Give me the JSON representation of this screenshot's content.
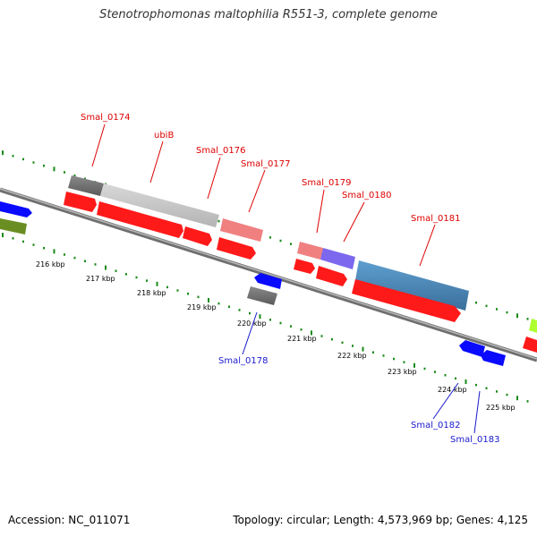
{
  "title": "Stenotrophomonas maltophilia R551-3, complete genome",
  "footer": {
    "accession": "Accession: NC_011071",
    "summary": "Topology: circular; Length: 4,573,969 bp; Genes: 4,125"
  },
  "colors": {
    "backbone": "#8a8a8a",
    "dots": "#1a8a1a",
    "cds": "#ff1a1a",
    "gene_label_top": "#dd0000",
    "gene_label_bottom": "#1a1acc",
    "blue_gene": "#0a0aff",
    "olive_gene": "#6b8e23",
    "grey_gene": "#777777",
    "lightgrey_gene": "#c8c8c8",
    "pink_gene": "#f08080",
    "purple_gene": "#7b68ee",
    "steel_gene": "#4682b4",
    "lime_gene": "#adff2f"
  },
  "scale_ticks": [
    {
      "label": "216 kbp"
    },
    {
      "label": "217 kbp"
    },
    {
      "label": "218 kbp"
    },
    {
      "label": "219 kbp"
    },
    {
      "label": "220 kbp"
    },
    {
      "label": "221 kbp"
    },
    {
      "label": "222 kbp"
    },
    {
      "label": "223 kbp"
    },
    {
      "label": "224 kbp"
    },
    {
      "label": "225 kbp"
    }
  ],
  "gene_labels": [
    {
      "text": "Smal_0174",
      "strand": "top"
    },
    {
      "text": "ubiB",
      "strand": "top"
    },
    {
      "text": "Smal_0176",
      "strand": "top"
    },
    {
      "text": "Smal_0177",
      "strand": "top"
    },
    {
      "text": "Smal_0179",
      "strand": "top"
    },
    {
      "text": "Smal_0180",
      "strand": "top"
    },
    {
      "text": "Smal_0181",
      "strand": "top"
    },
    {
      "text": "Smal_0178",
      "strand": "bottom"
    },
    {
      "text": "Smal_0182",
      "strand": "bottom"
    },
    {
      "text": "Smal_0183",
      "strand": "bottom"
    }
  ]
}
